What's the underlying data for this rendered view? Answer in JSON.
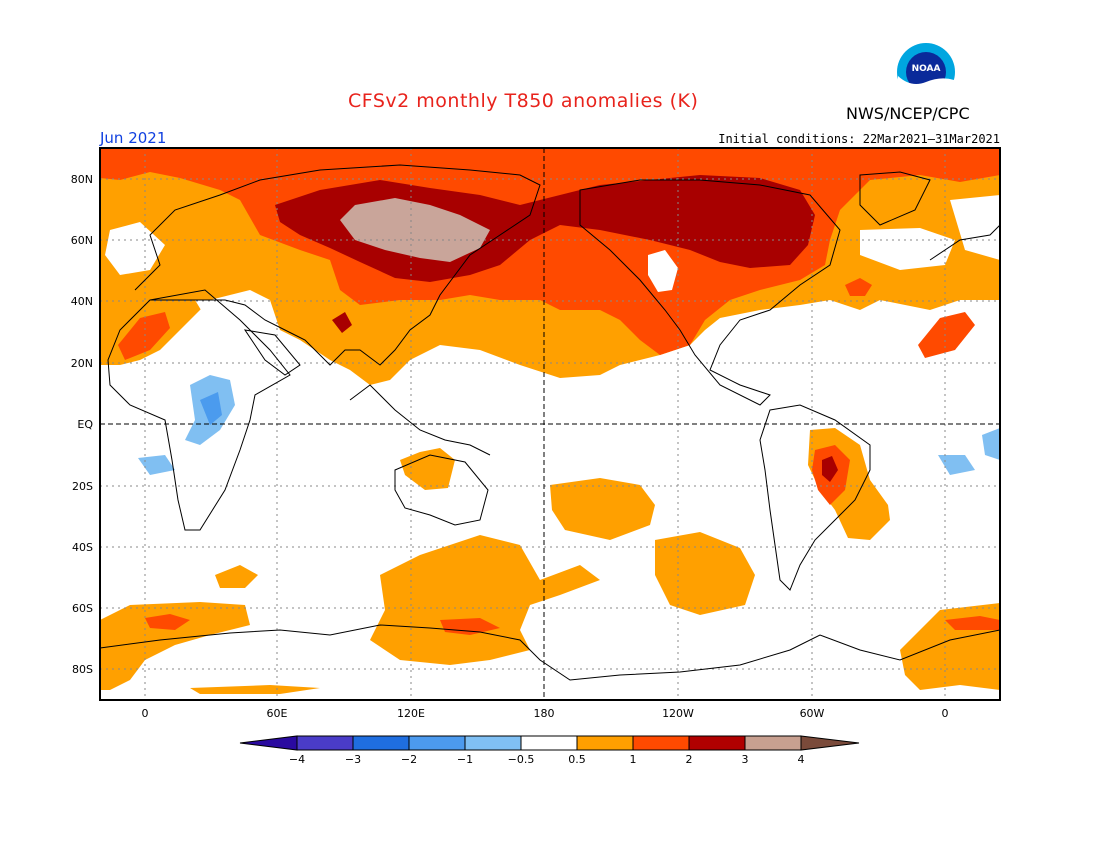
{
  "header": {
    "title": "CFSv2 monthly T850 anomalies (K)",
    "agency": "NWS/NCEP/CPC",
    "logo_text": "NOAA",
    "month": "Jun 2021",
    "initial_conditions": "Initial conditions: 22Mar2021–31Mar2021"
  },
  "axes": {
    "lat_labels": [
      "80N",
      "60N",
      "40N",
      "20N",
      "EQ",
      "20S",
      "40S",
      "60S",
      "80S"
    ],
    "lon_labels": [
      "0",
      "60E",
      "120E",
      "180",
      "120W",
      "60W",
      "0"
    ]
  },
  "colorbar": {
    "ticks": [
      "−4",
      "−3",
      "−2",
      "−1",
      "−0.5",
      "0.5",
      "1",
      "2",
      "3",
      "4"
    ],
    "colors": [
      "#2a0aa0",
      "#4a3cc8",
      "#1f6ee0",
      "#4c9aee",
      "#80c0f4",
      "#ffffff",
      "#ff9f00",
      "#ff4a00",
      "#b00000",
      "#c8a090",
      "#7a4a3a"
    ]
  },
  "palette": {
    "anom_0_5_1": "#ffa000",
    "anom_1_2": "#ff4a00",
    "anom_2_3": "#a80000",
    "anom_3_4": "#c9a59a",
    "anom_neg_0_5_1": "#80bff2",
    "anom_neg_1_2": "#4b9bee"
  }
}
